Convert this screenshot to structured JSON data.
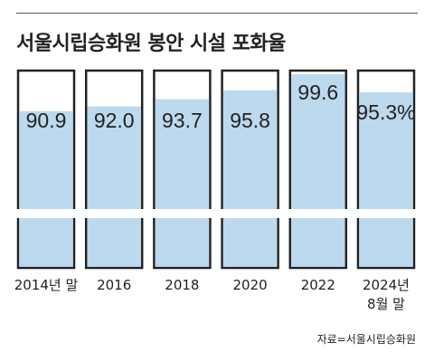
{
  "chart_data": {
    "type": "bar",
    "title": "서울시립승화원 봉안 시설 포화율",
    "categories": [
      [
        "2014년 말"
      ],
      [
        "2016"
      ],
      [
        "2018"
      ],
      [
        "2020"
      ],
      [
        "2022"
      ],
      [
        "2024년",
        "8월 말"
      ]
    ],
    "value_labels": [
      "90.9",
      "92.0",
      "93.7",
      "95.8",
      "99.6",
      "95.3%"
    ],
    "values": [
      90.9,
      92.0,
      93.7,
      95.8,
      99.6,
      95.3
    ],
    "xlabel": "",
    "ylabel": "",
    "ylim": [
      0,
      100
    ],
    "axis_break": true,
    "grid": false,
    "colors": {
      "fill": "#bcd9ee",
      "outline": "#222222"
    },
    "source": "자료=서울시립승화원"
  }
}
